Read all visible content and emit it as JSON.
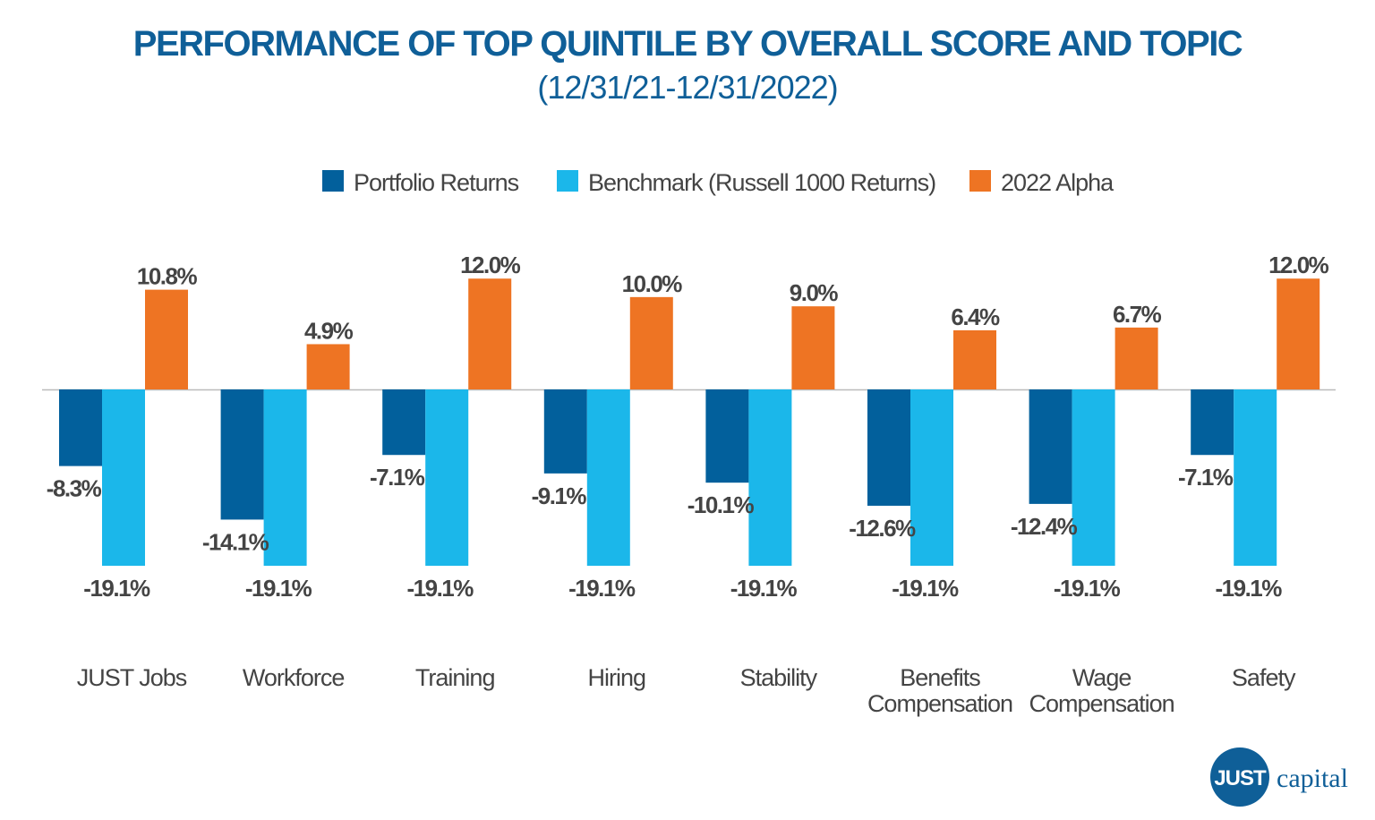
{
  "chart_data": {
    "type": "bar",
    "title": "PERFORMANCE OF TOP QUINTILE BY OVERALL SCORE AND TOPIC",
    "subtitle": "(12/31/21-12/31/2022)",
    "categories": [
      [
        "JUST Jobs"
      ],
      [
        "Workforce"
      ],
      [
        "Training"
      ],
      [
        "Hiring"
      ],
      [
        "Stability"
      ],
      [
        "Benefits",
        "Compensation"
      ],
      [
        "Wage",
        "Compensation"
      ],
      [
        "Safety"
      ]
    ],
    "series": [
      {
        "name": "Portfolio Returns",
        "color": "#02609c",
        "values": [
          -8.3,
          -14.1,
          -7.1,
          -9.1,
          -10.1,
          -12.6,
          -12.4,
          -7.1
        ],
        "labels": [
          "-8.3%",
          "-14.1%",
          "-7.1%",
          "-9.1%",
          "-10.1%",
          "-12.6%",
          "-12.4%",
          "-7.1%"
        ]
      },
      {
        "name": "Benchmark (Russell 1000 Returns)",
        "color": "#1bb7ea",
        "values": [
          -19.1,
          -19.1,
          -19.1,
          -19.1,
          -19.1,
          -19.1,
          -19.1,
          -19.1
        ],
        "labels": [
          "-19.1%",
          "-19.1%",
          "-19.1%",
          "-19.1%",
          "-19.1%",
          "-19.1%",
          "-19.1%",
          "-19.1%"
        ]
      },
      {
        "name": "2022 Alpha",
        "color": "#ee7423",
        "values": [
          10.8,
          4.9,
          12.0,
          10.0,
          9.0,
          6.4,
          6.7,
          12.0
        ],
        "labels": [
          "10.8%",
          "4.9%",
          "12.0%",
          "10.0%",
          "9.0%",
          "6.4%",
          "6.7%",
          "12.0%"
        ]
      }
    ],
    "unit": "%",
    "legend_position": "top",
    "grid": false,
    "axis_line_color": "#bbbbbb"
  },
  "logo": {
    "mark": "JUST",
    "word": "capital",
    "color": "#0f5f98"
  }
}
